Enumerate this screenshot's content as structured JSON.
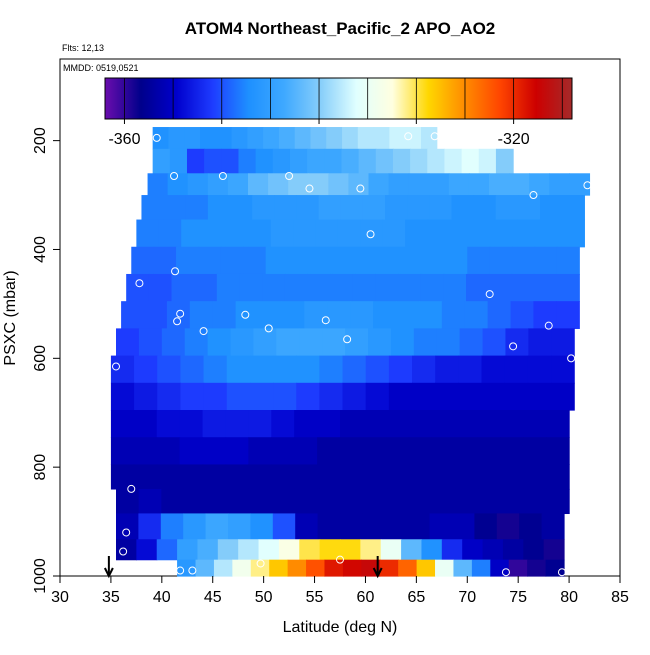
{
  "chart_data": {
    "type": "heatmap",
    "title": "ATOM4 Northeast_Pacific_2 APO_AO2",
    "subtitle_flts": "Flts: 12,13",
    "subtitle_mmdd": "MMDD: 0519,0521",
    "xlabel": "Latitude (deg N)",
    "ylabel": "PSXC (mbar)",
    "xlim": [
      30,
      85
    ],
    "ylim": [
      1000,
      50
    ],
    "x_ticks": [
      30,
      35,
      40,
      45,
      50,
      55,
      60,
      65,
      70,
      75,
      80,
      85
    ],
    "y_ticks": [
      200,
      400,
      600,
      800,
      1000
    ],
    "colorbar": {
      "range": [
        -362,
        -314
      ],
      "ticks": [
        -360,
        -350,
        -340,
        -330,
        -320
      ],
      "colors": [
        "#6a0dad",
        "#00008b",
        "#0000cd",
        "#1e3cff",
        "#1e90ff",
        "#3fa9ff",
        "#87cefa",
        "#e0ffff",
        "#ffffe0",
        "#ffd700",
        "#ff8c00",
        "#ff4500",
        "#cd0000",
        "#a52a2a"
      ]
    },
    "arrows_lat": [
      34.8,
      61.2
    ],
    "rows": [
      {
        "p": 190,
        "lat_start": 39.1,
        "lat_end": 67.0,
        "values": [
          -347,
          -346,
          -346,
          -347,
          -347,
          -346,
          -345,
          -344,
          -343,
          -342,
          -341,
          -340,
          -339,
          -338,
          -338,
          -337,
          -337,
          -338
        ]
      },
      {
        "p": 240,
        "lat_start": 39.1,
        "lat_end": 74.5,
        "values": [
          -345,
          -346,
          -351,
          -350,
          -350,
          -348,
          -347,
          -346,
          -345,
          -344,
          -344,
          -343,
          -342,
          -341,
          -340,
          -339,
          -338,
          -337,
          -336,
          -337,
          -340
        ]
      },
      {
        "p": 280,
        "lat_start": 38.6,
        "lat_end": 82.0,
        "values": [
          -348,
          -347,
          -346,
          -345,
          -344,
          -342,
          -341,
          -340,
          -340,
          -341,
          -342,
          -344,
          -345,
          -345,
          -345,
          -344,
          -344,
          -343,
          -343,
          -344,
          -345,
          -345
        ]
      },
      {
        "p": 320,
        "lat_start": 38.0,
        "lat_end": 81.5,
        "values": [
          -348,
          -348,
          -348,
          -347,
          -347,
          -346,
          -346,
          -346,
          -345,
          -345,
          -345,
          -346,
          -346,
          -346,
          -347,
          -347,
          -346,
          -346,
          -347,
          -347
        ]
      },
      {
        "p": 370,
        "lat_start": 37.5,
        "lat_end": 81.5,
        "values": [
          -348,
          -348,
          -347,
          -347,
          -347,
          -347,
          -346,
          -346,
          -346,
          -346,
          -346,
          -346,
          -347,
          -347,
          -347,
          -347,
          -347,
          -347,
          -347,
          -347
        ]
      },
      {
        "p": 420,
        "lat_start": 37.0,
        "lat_end": 81.0,
        "values": [
          -349,
          -349,
          -348,
          -348,
          -348,
          -348,
          -347,
          -347,
          -347,
          -347,
          -347,
          -347,
          -347,
          -347,
          -347,
          -348,
          -348,
          -348,
          -348,
          -348
        ]
      },
      {
        "p": 470,
        "lat_start": 36.5,
        "lat_end": 81.0,
        "values": [
          -350,
          -350,
          -349,
          -349,
          -348,
          -348,
          -348,
          -348,
          -348,
          -348,
          -348,
          -348,
          -348,
          -348,
          -348,
          -349,
          -349,
          -349,
          -349,
          -349
        ]
      },
      {
        "p": 520,
        "lat_start": 36.0,
        "lat_end": 81.0,
        "values": [
          -350,
          -350,
          -349,
          -348,
          -348,
          -347,
          -347,
          -347,
          -346,
          -346,
          -346,
          -347,
          -347,
          -347,
          -348,
          -348,
          -349,
          -350,
          -351,
          -351
        ]
      },
      {
        "p": 570,
        "lat_start": 35.5,
        "lat_end": 80.5,
        "values": [
          -351,
          -350,
          -349,
          -348,
          -347,
          -346,
          -345,
          -344,
          -344,
          -344,
          -345,
          -346,
          -347,
          -348,
          -348,
          -349,
          -350,
          -352,
          -353,
          -353
        ]
      },
      {
        "p": 620,
        "lat_start": 35.0,
        "lat_end": 80.5,
        "values": [
          -352,
          -351,
          -350,
          -349,
          -348,
          -347,
          -347,
          -347,
          -347,
          -348,
          -349,
          -350,
          -351,
          -352,
          -353,
          -353,
          -354,
          -354,
          -354,
          -354
        ]
      },
      {
        "p": 670,
        "lat_start": 35.0,
        "lat_end": 80.5,
        "values": [
          -354,
          -353,
          -352,
          -351,
          -351,
          -350,
          -350,
          -350,
          -351,
          -352,
          -353,
          -354,
          -355,
          -355,
          -355,
          -355,
          -355,
          -355,
          -355,
          -355
        ]
      },
      {
        "p": 720,
        "lat_start": 35.0,
        "lat_end": 80.0,
        "values": [
          -355,
          -355,
          -354,
          -354,
          -353,
          -353,
          -353,
          -354,
          -355,
          -355,
          -356,
          -356,
          -356,
          -356,
          -356,
          -356,
          -356,
          -356,
          -356,
          -356
        ]
      },
      {
        "p": 770,
        "lat_start": 35.0,
        "lat_end": 80.0,
        "values": [
          -356,
          -356,
          -356,
          -355,
          -355,
          -355,
          -356,
          -356,
          -356,
          -357,
          -357,
          -357,
          -357,
          -357,
          -357,
          -357,
          -357,
          -357,
          -357,
          -357
        ]
      },
      {
        "p": 820,
        "lat_start": 35.0,
        "lat_end": 80.0,
        "values": [
          -357,
          -357,
          -357,
          -357,
          -357,
          -357,
          -357,
          -357,
          -357,
          -357,
          -357,
          -357,
          -357,
          -357,
          -357,
          -357,
          -357,
          -357,
          -357,
          -357
        ]
      },
      {
        "p": 860,
        "lat_start": 35.5,
        "lat_end": 80.0,
        "values": [
          -357,
          -356,
          -357,
          -357,
          -357,
          -357,
          -357,
          -357,
          -357,
          -357,
          -357,
          -357,
          -357,
          -357,
          -357,
          -357,
          -357,
          -357,
          -357,
          -357
        ]
      },
      {
        "p": 910,
        "lat_start": 35.5,
        "lat_end": 79.5,
        "values": [
          -356,
          -352,
          -348,
          -346,
          -344,
          -345,
          -347,
          -350,
          -356,
          -357,
          -357,
          -357,
          -357,
          -357,
          -356,
          -356,
          -358,
          -359,
          -358,
          -357
        ]
      },
      {
        "p": 955,
        "lat_start": 35.5,
        "lat_end": 79.5,
        "values": [
          -357,
          -354,
          -349,
          -345,
          -343,
          -340,
          -338,
          -336,
          -333,
          -330,
          -329,
          -329,
          -331,
          -335,
          -342,
          -347,
          -352,
          -355,
          -356,
          -357,
          -358,
          -359
        ]
      },
      {
        "p": 985,
        "lat_start": 41.5,
        "lat_end": 79.5,
        "values": [
          -346,
          -342,
          -338,
          -334,
          -331,
          -328,
          -325,
          -322,
          -319,
          -318,
          -317,
          -320,
          -323,
          -328,
          -335,
          -342,
          -348,
          -355,
          -360,
          -359,
          -358
        ]
      }
    ],
    "points": [
      {
        "lat": 39.5,
        "p": 195
      },
      {
        "lat": 41.2,
        "p": 265
      },
      {
        "lat": 46.0,
        "p": 265
      },
      {
        "lat": 52.5,
        "p": 265
      },
      {
        "lat": 54.5,
        "p": 288
      },
      {
        "lat": 59.5,
        "p": 288
      },
      {
        "lat": 64.2,
        "p": 192
      },
      {
        "lat": 66.8,
        "p": 192
      },
      {
        "lat": 76.5,
        "p": 300
      },
      {
        "lat": 81.8,
        "p": 282
      },
      {
        "lat": 60.5,
        "p": 372
      },
      {
        "lat": 41.3,
        "p": 440
      },
      {
        "lat": 37.8,
        "p": 462
      },
      {
        "lat": 72.2,
        "p": 482
      },
      {
        "lat": 41.8,
        "p": 518
      },
      {
        "lat": 41.5,
        "p": 532
      },
      {
        "lat": 44.1,
        "p": 550
      },
      {
        "lat": 48.2,
        "p": 520
      },
      {
        "lat": 50.5,
        "p": 545
      },
      {
        "lat": 56.1,
        "p": 530
      },
      {
        "lat": 58.2,
        "p": 565
      },
      {
        "lat": 74.5,
        "p": 578
      },
      {
        "lat": 78.0,
        "p": 540
      },
      {
        "lat": 80.2,
        "p": 600
      },
      {
        "lat": 35.5,
        "p": 615
      },
      {
        "lat": 37.0,
        "p": 840
      },
      {
        "lat": 36.5,
        "p": 920
      },
      {
        "lat": 36.2,
        "p": 955
      },
      {
        "lat": 41.8,
        "p": 990
      },
      {
        "lat": 43.0,
        "p": 990
      },
      {
        "lat": 49.7,
        "p": 977
      },
      {
        "lat": 57.5,
        "p": 970
      },
      {
        "lat": 73.8,
        "p": 993
      },
      {
        "lat": 79.3,
        "p": 993
      }
    ]
  }
}
